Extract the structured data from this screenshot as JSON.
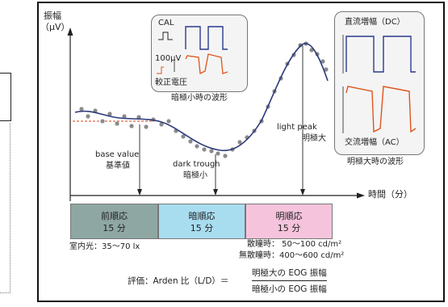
{
  "y_axis": {
    "title_line1": "振幅",
    "title_line2": "（μV）"
  },
  "x_axis": {
    "label": "時間（分）"
  },
  "inset_small": {
    "cal_label": "CAL",
    "cal_value": "100μV",
    "correction_label": "較正電圧",
    "caption": "暗極小時の波形"
  },
  "inset_large": {
    "dc_label": "直流増幅（DC）",
    "ac_label": "交流増幅（AC）",
    "caption": "明極大時の波形"
  },
  "annotations": {
    "base_value_en": "base value",
    "base_value_jp": "基準値",
    "dark_trough_en": "dark trough",
    "dark_trough_jp": "暗極小",
    "light_peak_en": "light peak",
    "light_peak_jp": "明極大"
  },
  "phases": [
    {
      "name": "前順応",
      "duration": "15 分",
      "color": "#8fa7a3"
    },
    {
      "name": "暗順応",
      "duration": "15 分",
      "color": "#a8ddf0"
    },
    {
      "name": "明順応",
      "duration": "15 分",
      "color": "#f5c3dc"
    }
  ],
  "room_light": "室内光：35〜70 lx",
  "mydriasis": {
    "dilated": "散瞳時： 50〜100 cd/m²",
    "undilated": "無散瞳時：400〜600 cd/m²"
  },
  "formula": {
    "prefix": "評価：Arden 比（L/D）＝",
    "numerator": "明極大の EOG 振幅",
    "denominator": "暗極小の EOG 振幅"
  },
  "colors": {
    "curve": "#2b3a7a",
    "dots": "#8a8a8a",
    "dashed": "#d4421c",
    "ac_trace": "#e0541b",
    "dc_trace": "#2a3a8f"
  }
}
